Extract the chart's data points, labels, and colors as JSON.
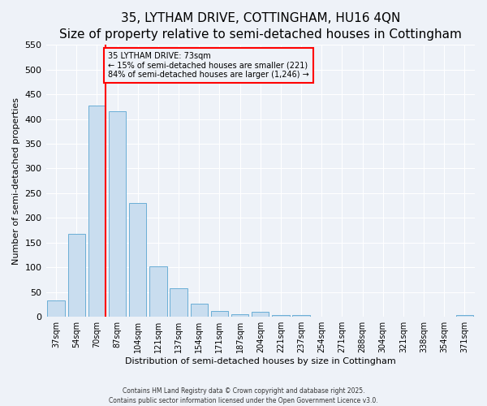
{
  "title": "35, LYTHAM DRIVE, COTTINGHAM, HU16 4QN",
  "subtitle": "Size of property relative to semi-detached houses in Cottingham",
  "xlabel": "Distribution of semi-detached houses by size in Cottingham",
  "ylabel": "Number of semi-detached properties",
  "bar_labels": [
    "37sqm",
    "54sqm",
    "70sqm",
    "87sqm",
    "104sqm",
    "121sqm",
    "137sqm",
    "154sqm",
    "171sqm",
    "187sqm",
    "204sqm",
    "221sqm",
    "237sqm",
    "254sqm",
    "271sqm",
    "288sqm",
    "304sqm",
    "321sqm",
    "338sqm",
    "354sqm",
    "371sqm"
  ],
  "bar_values": [
    33,
    168,
    427,
    415,
    230,
    102,
    58,
    26,
    12,
    5,
    10,
    3,
    3,
    0,
    0,
    0,
    0,
    0,
    0,
    0,
    3
  ],
  "bar_color": "#c9ddef",
  "bar_edge_color": "#6aaed6",
  "vline_color": "red",
  "annotation_title": "35 LYTHAM DRIVE: 73sqm",
  "annotation_line1": "← 15% of semi-detached houses are smaller (221)",
  "annotation_line2": "84% of semi-detached houses are larger (1,246) →",
  "annotation_box_color": "red",
  "ylim": [
    0,
    550
  ],
  "yticks": [
    0,
    50,
    100,
    150,
    200,
    250,
    300,
    350,
    400,
    450,
    500,
    550
  ],
  "footer1": "Contains HM Land Registry data © Crown copyright and database right 2025.",
  "footer2": "Contains public sector information licensed under the Open Government Licence v3.0.",
  "bg_color": "#eef2f8",
  "grid_color": "#ffffff",
  "title_fontsize": 11,
  "axis_fontsize": 8,
  "tick_fontsize": 7
}
